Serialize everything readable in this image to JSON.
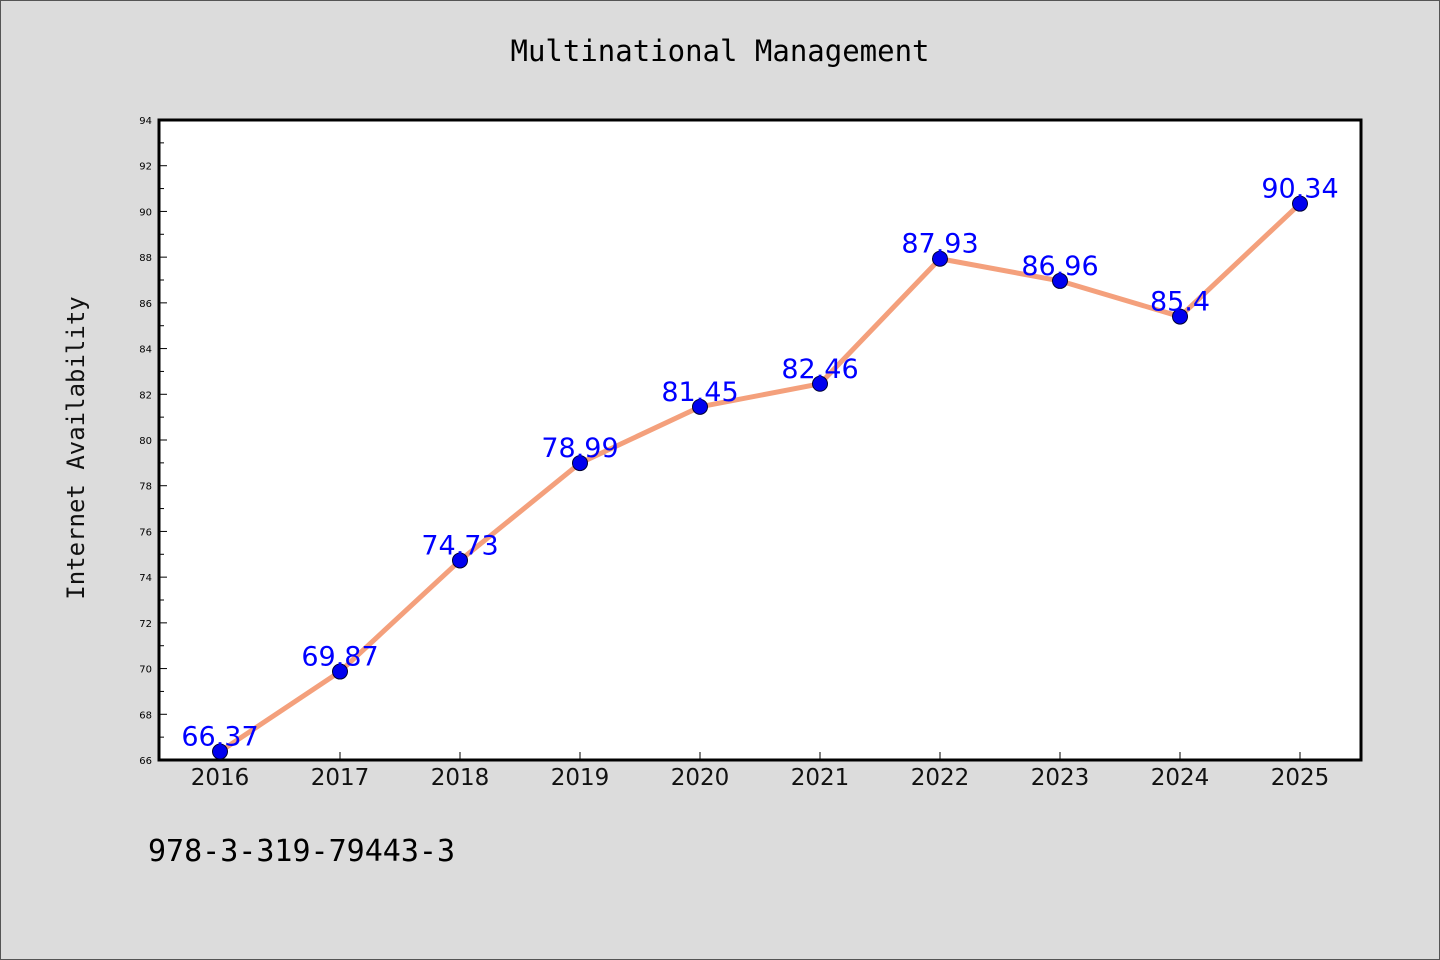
{
  "chart_data": {
    "type": "line",
    "title": "Multinational Management",
    "xlabel": "",
    "ylabel": "Internet Availability",
    "categories": [
      "2016",
      "2017",
      "2018",
      "2019",
      "2020",
      "2021",
      "2022",
      "2023",
      "2024",
      "2025"
    ],
    "series": [
      {
        "values": [
          66.37,
          69.87,
          74.73,
          78.99,
          81.45,
          82.46,
          87.93,
          86.96,
          85.4,
          90.34
        ],
        "labels": [
          "66.37",
          "69.87",
          "74.73",
          "78.99",
          "81.45",
          "82.46",
          "87.93",
          "86.96",
          "85.4",
          "90.34"
        ],
        "line_color": "#f4a07c",
        "marker_color": "#0000ee",
        "label_color": "#0000ff"
      }
    ],
    "ylim": [
      66,
      94
    ],
    "yticks": [
      "66",
      "68",
      "70",
      "72",
      "74",
      "76",
      "78",
      "80",
      "82",
      "84",
      "86",
      "88",
      "90",
      "92",
      "94"
    ],
    "grid": false,
    "legend": "none"
  },
  "footer": {
    "isbn": "978-3-319-79443-3"
  },
  "colors": {
    "background": "#dcdcdc",
    "plot_background": "#ffffff"
  }
}
